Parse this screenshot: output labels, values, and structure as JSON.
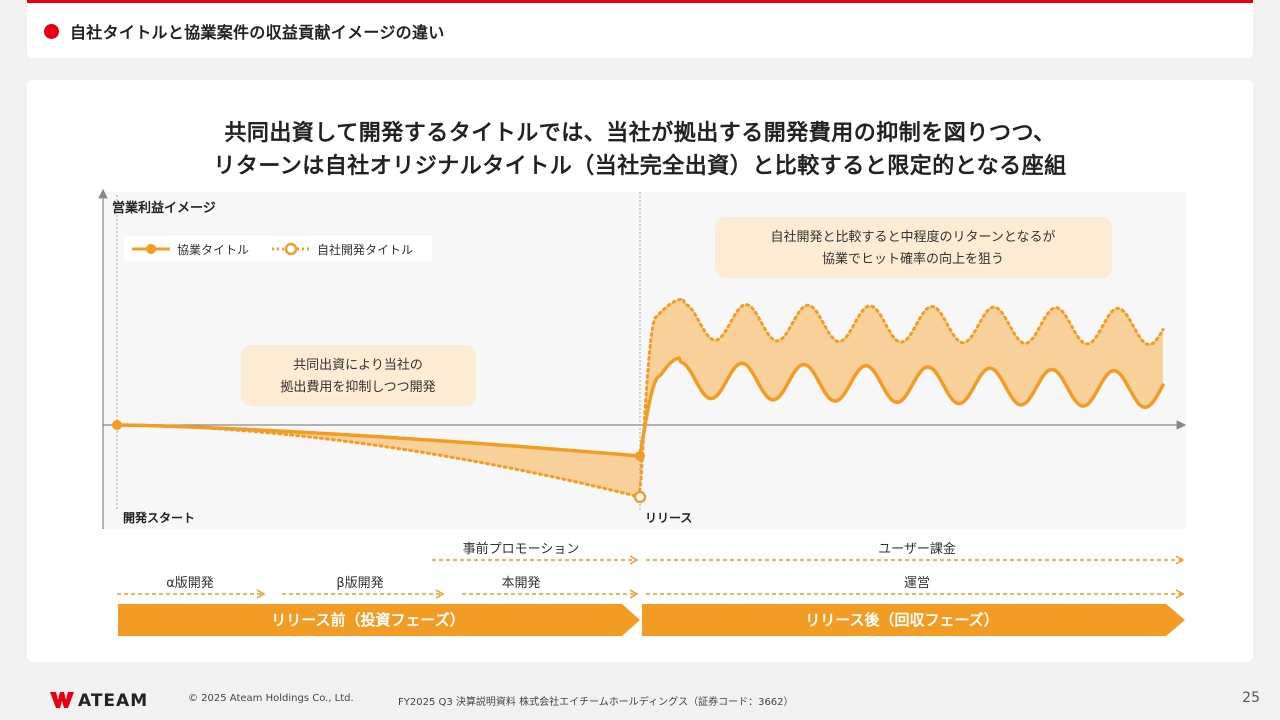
{
  "header": {
    "title": "自社タイトルと協業案件の収益貢献イメージの違い"
  },
  "headline": {
    "line1": "共同出資して開発するタイトルでは、当社が拠出する開発費用の抑制を図りつつ、",
    "line2": "リターンは自社オリジナルタイトル（当社完全出資）と比較すると限定的となる座組"
  },
  "diagram": {
    "y_axis_label": "営業利益イメージ",
    "legend": {
      "collab": "協業タイトル",
      "own": "自社開発タイトル"
    },
    "callout_left": {
      "line1": "共同出資により当社の",
      "line2": "拠出費用を抑制しつつ開発"
    },
    "callout_right": {
      "line1": "自社開発と比較すると中程度のリターンとなるが",
      "line2": "協業でヒット確率の向上を狙う"
    },
    "marker_start": "開発スタート",
    "marker_release": "リリース"
  },
  "timeline": {
    "promotion": "事前プロモーション",
    "user_billing": "ユーザー課金",
    "alpha": "α版開発",
    "beta": "β版開発",
    "main_dev": "本開発",
    "operation": "運営",
    "phase_before": "リリース前（投資フェーズ）",
    "phase_after": "リリース後（回収フェーズ）"
  },
  "footer": {
    "logo": "ATEAM",
    "copyright": "© 2025 Ateam Holdings Co., Ltd.",
    "doc": "FY2025 Q3 決算説明資料 株式会社エイチームホールディングス（証券コード：3662）",
    "page": "25"
  },
  "colors": {
    "accent_red": "#e60012",
    "orange": "#f39c24",
    "orange_fill": "#f8c98a",
    "callout_bg": "#fdebd3"
  }
}
